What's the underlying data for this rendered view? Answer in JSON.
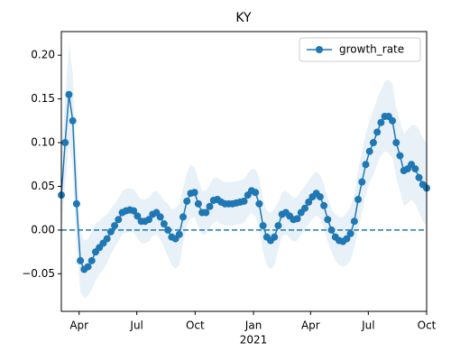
{
  "chart_data": {
    "type": "line",
    "title": "KY",
    "series": [
      {
        "name": "growth_rate",
        "color": "#1f77b4",
        "marker": "circle",
        "values": [
          0.04,
          0.1,
          0.155,
          0.125,
          0.03,
          -0.035,
          -0.045,
          -0.042,
          -0.035,
          -0.025,
          -0.02,
          -0.015,
          -0.01,
          -0.002,
          0.005,
          0.012,
          0.02,
          0.022,
          0.023,
          0.022,
          0.016,
          0.01,
          0.01,
          0.012,
          0.018,
          0.02,
          0.015,
          0.007,
          0,
          -0.008,
          -0.01,
          -0.005,
          0.015,
          0.033,
          0.042,
          0.043,
          0.03,
          0.02,
          0.02,
          0.027,
          0.034,
          0.035,
          0.032,
          0.03,
          0.03,
          0.03,
          0.031,
          0.032,
          0.033,
          0.04,
          0.045,
          0.043,
          0.03,
          0.005,
          -0.008,
          -0.012,
          -0.008,
          0.005,
          0.018,
          0.02,
          0.016,
          0.012,
          0.013,
          0.02,
          0.025,
          0.032,
          0.038,
          0.042,
          0.038,
          0.028,
          0.012,
          0,
          -0.008,
          -0.012,
          -0.013,
          -0.01,
          -0.004,
          0.01,
          0.035,
          0.055,
          0.075,
          0.09,
          0.1,
          0.112,
          0.123,
          0.13,
          0.13,
          0.125,
          0.1,
          0.085,
          0.068,
          0.07,
          0.075,
          0.07,
          0.06,
          0.052,
          0.048
        ]
      }
    ],
    "band": {
      "color": "#1f77b4",
      "opacity": 0.1,
      "lower": [
        0,
        0.05,
        0.1,
        0.07,
        -0.02,
        -0.07,
        -0.078,
        -0.075,
        -0.068,
        -0.058,
        -0.05,
        -0.045,
        -0.038,
        -0.028,
        -0.02,
        -0.013,
        -0.005,
        -0.003,
        -0.002,
        -0.003,
        -0.009,
        -0.015,
        -0.015,
        -0.013,
        -0.007,
        -0.005,
        -0.01,
        -0.02,
        -0.03,
        -0.04,
        -0.045,
        -0.04,
        -0.015,
        0.005,
        0.013,
        0.015,
        0.003,
        -0.005,
        -0.005,
        0.002,
        0.009,
        0.01,
        0.007,
        0.005,
        0.005,
        0.005,
        0.006,
        0.007,
        0.008,
        0.015,
        0.02,
        0.015,
        0,
        -0.025,
        -0.04,
        -0.045,
        -0.04,
        -0.022,
        -0.007,
        -0.005,
        -0.009,
        -0.013,
        -0.012,
        -0.005,
        0,
        0.007,
        0.013,
        0.017,
        0.013,
        0.003,
        -0.013,
        -0.025,
        -0.035,
        -0.04,
        -0.042,
        -0.04,
        -0.035,
        -0.02,
        0,
        0.02,
        0.04,
        0.055,
        0.063,
        0.075,
        0.085,
        0.09,
        0.088,
        0.083,
        0.06,
        0.045,
        0.028,
        0.03,
        0.035,
        0.03,
        0.02,
        0.01,
        0.005
      ],
      "upper": [
        0.08,
        0.15,
        0.213,
        0.18,
        0.08,
        0,
        -0.012,
        -0.01,
        -0.002,
        0.008,
        0.01,
        0.015,
        0.018,
        0.024,
        0.03,
        0.037,
        0.045,
        0.047,
        0.048,
        0.047,
        0.041,
        0.035,
        0.035,
        0.037,
        0.043,
        0.045,
        0.04,
        0.034,
        0.03,
        0.024,
        0.025,
        0.03,
        0.048,
        0.065,
        0.075,
        0.072,
        0.058,
        0.045,
        0.045,
        0.052,
        0.059,
        0.06,
        0.057,
        0.055,
        0.055,
        0.055,
        0.056,
        0.057,
        0.058,
        0.065,
        0.07,
        0.07,
        0.06,
        0.035,
        0.022,
        0.02,
        0.024,
        0.032,
        0.043,
        0.045,
        0.041,
        0.037,
        0.038,
        0.045,
        0.05,
        0.057,
        0.063,
        0.067,
        0.063,
        0.053,
        0.037,
        0.025,
        0.018,
        0.015,
        0.015,
        0.02,
        0.027,
        0.04,
        0.07,
        0.09,
        0.11,
        0.125,
        0.137,
        0.15,
        0.16,
        0.17,
        0.172,
        0.167,
        0.14,
        0.125,
        0.11,
        0.115,
        0.12,
        0.12,
        0.115,
        0.105,
        0.1
      ]
    },
    "hline": {
      "value": 0,
      "color": "#1f77b4",
      "style": "dashed"
    },
    "xlim": [
      0,
      96
    ],
    "xticks": [
      {
        "value": 4.67,
        "label": "Apr"
      },
      {
        "value": 19.83,
        "label": "Jul"
      },
      {
        "value": 35.17,
        "label": "Oct"
      },
      {
        "value": 50.5,
        "label": "Jan"
      },
      {
        "value": 65.5,
        "label": "Apr"
      },
      {
        "value": 80.67,
        "label": "Jul"
      },
      {
        "value": 96,
        "label": "Oct"
      }
    ],
    "x_secondary_labels": [
      {
        "value": 50.5,
        "label": "2021"
      }
    ],
    "ylim": [
      -0.093,
      0.227
    ],
    "yticks": [
      {
        "value": -0.05,
        "label": "−0.05"
      },
      {
        "value": 0,
        "label": "0.00"
      },
      {
        "value": 0.05,
        "label": "0.05"
      },
      {
        "value": 0.1,
        "label": "0.10"
      },
      {
        "value": 0.15,
        "label": "0.15"
      },
      {
        "value": 0.2,
        "label": "0.20"
      }
    ],
    "legend": "upper right",
    "grid": false
  }
}
